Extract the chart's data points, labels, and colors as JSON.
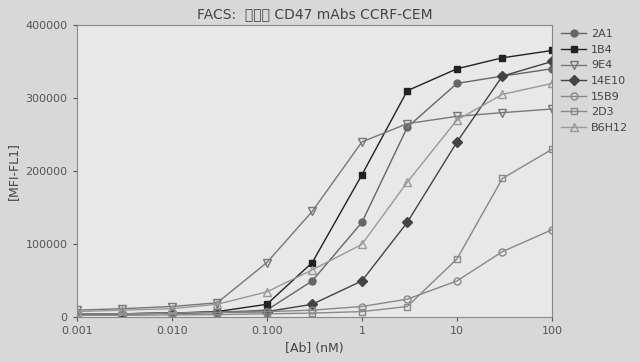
{
  "title": "FACS:  ネズミ CD47 mAbs CCRF-CEM",
  "xlabel": "[Ab] (nM)",
  "ylabel": "[MFI-FL1]",
  "ylim": [
    0,
    400000
  ],
  "yticks": [
    0,
    100000,
    200000,
    300000,
    400000
  ],
  "xtick_vals": [
    0.001,
    0.01,
    0.1,
    1,
    10,
    100
  ],
  "xtick_labels": [
    "0.001",
    "0.010",
    "0.100",
    "1",
    "10",
    "100"
  ],
  "series": {
    "2A1": {
      "x": [
        0.001,
        0.003,
        0.01,
        0.03,
        0.1,
        0.3,
        1,
        3,
        10,
        30,
        100
      ],
      "y": [
        5000,
        5000,
        6000,
        7000,
        10000,
        50000,
        130000,
        260000,
        320000,
        330000,
        340000
      ],
      "marker": "o",
      "fillstyle": "full",
      "color": "#666666",
      "linestyle": "-",
      "markersize": 5
    },
    "1B4": {
      "x": [
        0.001,
        0.003,
        0.01,
        0.03,
        0.1,
        0.3,
        1,
        3,
        10,
        30,
        100
      ],
      "y": [
        5000,
        5000,
        6000,
        8000,
        18000,
        75000,
        195000,
        310000,
        340000,
        355000,
        365000
      ],
      "marker": "s",
      "fillstyle": "full",
      "color": "#222222",
      "linestyle": "-",
      "markersize": 5
    },
    "9E4": {
      "x": [
        0.001,
        0.003,
        0.01,
        0.03,
        0.1,
        0.3,
        1,
        3,
        10,
        30,
        100
      ],
      "y": [
        10000,
        12000,
        15000,
        20000,
        75000,
        145000,
        240000,
        265000,
        275000,
        280000,
        285000
      ],
      "marker": "v",
      "fillstyle": "none",
      "color": "#777777",
      "linestyle": "-",
      "markersize": 6
    },
    "14E10": {
      "x": [
        0.001,
        0.003,
        0.01,
        0.03,
        0.1,
        0.3,
        1,
        3,
        10,
        30,
        100
      ],
      "y": [
        5000,
        5000,
        6000,
        7000,
        8000,
        18000,
        50000,
        130000,
        240000,
        330000,
        350000
      ],
      "marker": "D",
      "fillstyle": "full",
      "color": "#444444",
      "linestyle": "-",
      "markersize": 5
    },
    "15B9": {
      "x": [
        0.001,
        0.003,
        0.01,
        0.03,
        0.1,
        0.3,
        1,
        3,
        10,
        30,
        100
      ],
      "y": [
        5000,
        5000,
        6000,
        7000,
        8000,
        10000,
        15000,
        25000,
        50000,
        90000,
        120000
      ],
      "marker": "o",
      "fillstyle": "none",
      "color": "#888888",
      "linestyle": "-",
      "markersize": 5
    },
    "2D3": {
      "x": [
        0.001,
        0.003,
        0.01,
        0.03,
        0.1,
        0.3,
        1,
        3,
        10,
        30,
        100
      ],
      "y": [
        3000,
        3000,
        3500,
        4000,
        5000,
        6000,
        8000,
        15000,
        80000,
        190000,
        230000
      ],
      "marker": "s",
      "fillstyle": "none",
      "color": "#888888",
      "linestyle": "-",
      "markersize": 5
    },
    "B6H12": {
      "x": [
        0.001,
        0.003,
        0.01,
        0.03,
        0.1,
        0.3,
        1,
        3,
        10,
        30,
        100
      ],
      "y": [
        8000,
        10000,
        12000,
        18000,
        35000,
        65000,
        100000,
        185000,
        270000,
        305000,
        320000
      ],
      "marker": "^",
      "fillstyle": "none",
      "color": "#999999",
      "linestyle": "-",
      "markersize": 6
    }
  },
  "background_color": "#e8e8e8",
  "figure_bg": "#d8d8d8"
}
